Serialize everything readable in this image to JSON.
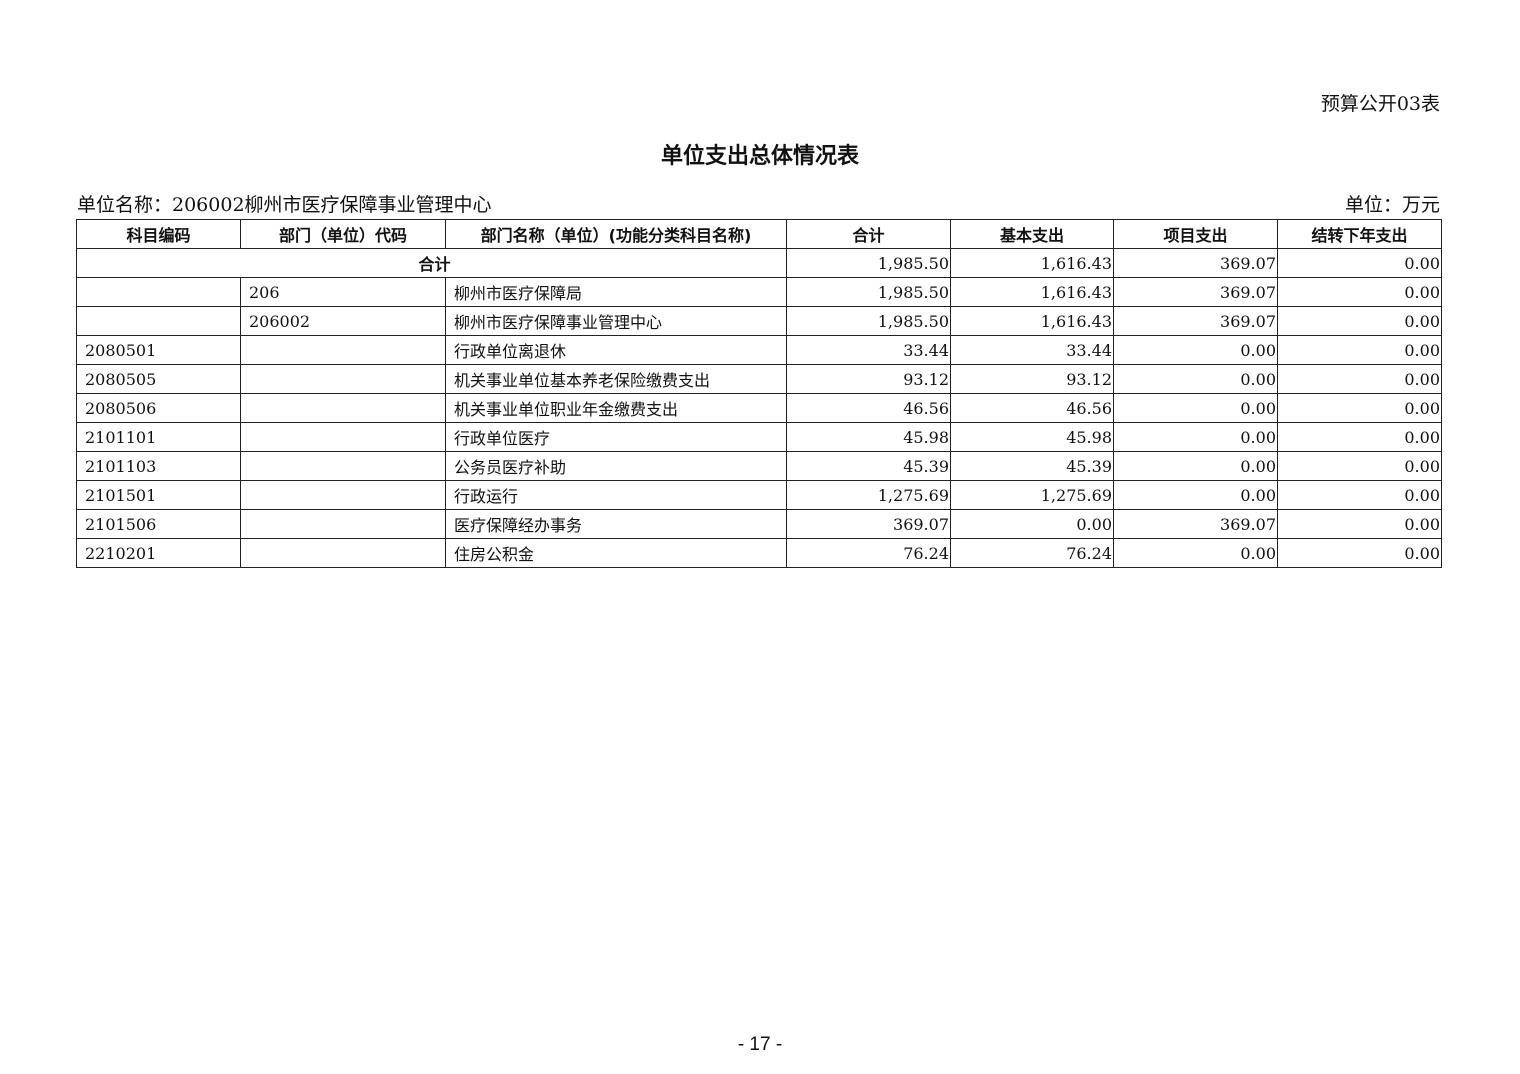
{
  "form_no": "预算公开03表",
  "title": "单位支出总体情况表",
  "unit_name": "单位名称：206002柳州市医疗保障事业管理中心",
  "unit": "单位：万元",
  "table": {
    "headers": [
      "科目编码",
      "部门（单位）代码",
      "部门名称（单位）(功能分类科目名称)",
      "合计",
      "基本支出",
      "项目支出",
      "结转下年支出"
    ],
    "total_row": {
      "label": "合计",
      "values": [
        "1,985.50",
        "1,616.43",
        "369.07",
        "0.00"
      ]
    },
    "rows": [
      [
        "",
        "206",
        "柳州市医疗保障局",
        "1,985.50",
        "1,616.43",
        "369.07",
        "0.00"
      ],
      [
        "",
        "206002",
        "柳州市医疗保障事业管理中心",
        "1,985.50",
        "1,616.43",
        "369.07",
        "0.00"
      ],
      [
        "2080501",
        "",
        "行政单位离退休",
        "33.44",
        "33.44",
        "0.00",
        "0.00"
      ],
      [
        "2080505",
        "",
        "机关事业单位基本养老保险缴费支出",
        "93.12",
        "93.12",
        "0.00",
        "0.00"
      ],
      [
        "2080506",
        "",
        "机关事业单位职业年金缴费支出",
        "46.56",
        "46.56",
        "0.00",
        "0.00"
      ],
      [
        "2101101",
        "",
        "行政单位医疗",
        "45.98",
        "45.98",
        "0.00",
        "0.00"
      ],
      [
        "2101103",
        "",
        "公务员医疗补助",
        "45.39",
        "45.39",
        "0.00",
        "0.00"
      ],
      [
        "2101501",
        "",
        "行政运行",
        "1,275.69",
        "1,275.69",
        "0.00",
        "0.00"
      ],
      [
        "2101506",
        "",
        "医疗保障经办事务",
        "369.07",
        "0.00",
        "369.07",
        "0.00"
      ],
      [
        "2210201",
        "",
        "住房公积金",
        "76.24",
        "76.24",
        "0.00",
        "0.00"
      ]
    ]
  },
  "page_number": "- 17 -"
}
